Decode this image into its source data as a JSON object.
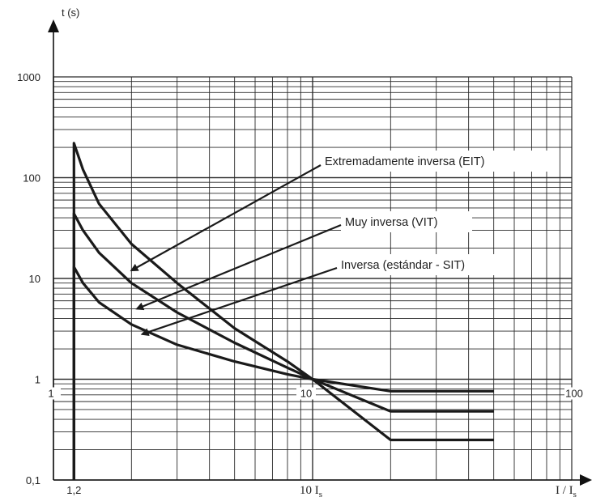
{
  "chart_data": {
    "type": "line",
    "title": "",
    "xlabel": "I / I",
    "xlabel_sub": "s",
    "ylabel": "t (s)",
    "x_scale": "log",
    "y_scale": "log",
    "xlim": [
      1,
      100
    ],
    "ylim": [
      0.1,
      1000
    ],
    "grid": true,
    "y_tick_labels": [
      "0,1",
      "1",
      "10",
      "100",
      "1000"
    ],
    "x_tick_labels_inner": [
      "1",
      "10",
      "100"
    ],
    "x_bottom_labels": {
      "pickup": "1,2",
      "ten_is": "10 I",
      "ten_is_sub": "s"
    },
    "series": [
      {
        "name": "Extremadamente inversa (EIT)",
        "x": [
          1.2,
          1.3,
          1.5,
          2,
          3,
          5,
          8,
          10,
          20,
          50
        ],
        "y": [
          220,
          120,
          55,
          22,
          9,
          3.2,
          1.5,
          1.0,
          0.25,
          0.25
        ]
      },
      {
        "name": "Muy inversa (VIT)",
        "x": [
          1.2,
          1.3,
          1.5,
          2,
          3,
          5,
          8,
          10,
          20,
          50
        ],
        "y": [
          44,
          30,
          18,
          9,
          4.6,
          2.3,
          1.3,
          1.0,
          0.48,
          0.48
        ]
      },
      {
        "name": "Inversa (estándar - SIT)",
        "x": [
          1.2,
          1.3,
          1.5,
          2,
          3,
          5,
          8,
          10,
          20,
          50
        ],
        "y": [
          13,
          9,
          5.8,
          3.5,
          2.2,
          1.5,
          1.12,
          1.0,
          0.76,
          0.76
        ]
      }
    ],
    "annotations": [
      {
        "text": "Extremadamente inversa (EIT)",
        "series": 0,
        "arrow_to": [
          2.0,
          12.0
        ]
      },
      {
        "text": "Muy inversa (VIT)",
        "series": 1,
        "arrow_to": [
          2.1,
          5.0
        ]
      },
      {
        "text": "Inversa (estándar - SIT)",
        "series": 2,
        "arrow_to": [
          2.2,
          2.8
        ]
      }
    ],
    "colors": {
      "curve": "#1a1a1a",
      "grid": "#2a2a2a",
      "axis": "#111111"
    }
  }
}
